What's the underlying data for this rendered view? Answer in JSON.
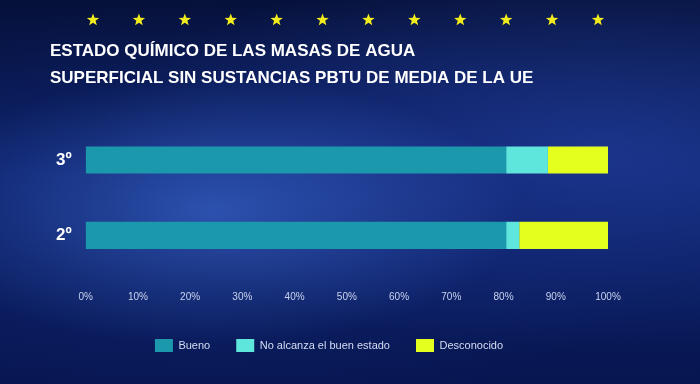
{
  "chart_data": {
    "type": "bar",
    "title": "ESTADO QUÍMICO DE LAS MASAS DE AGUA\nSUPERFICIAL SIN SUSTANCIAS PBTU DE MEDIA DE LA UE",
    "orientation": "horizontal",
    "stacked": true,
    "grid": false,
    "legend": "bottom",
    "categories": [
      "3º",
      "2º"
    ],
    "series": [
      {
        "name": "Bueno",
        "color": "#1c98ad",
        "values": [
          80.5,
          80.5
        ]
      },
      {
        "name": "No alcanza el buen estado",
        "color": "#5ee6dc",
        "values": [
          8,
          2.5
        ]
      },
      {
        "name": "Desconocido",
        "color": "#e4ff1e",
        "values": [
          11.5,
          17
        ]
      }
    ],
    "xlim": [
      0,
      100
    ],
    "xticks": [
      {
        "value": 0,
        "label": "0%"
      },
      {
        "value": 10,
        "label": "10%"
      },
      {
        "value": 20,
        "label": "20%"
      },
      {
        "value": 30,
        "label": "30%"
      },
      {
        "value": 40,
        "label": "40%"
      },
      {
        "value": 50,
        "label": "50%"
      },
      {
        "value": 60,
        "label": "60%"
      },
      {
        "value": 70,
        "label": "70%"
      },
      {
        "value": 80,
        "label": "80%"
      },
      {
        "value": 90,
        "label": "90%"
      },
      {
        "value": 100,
        "label": "100%"
      }
    ]
  }
}
